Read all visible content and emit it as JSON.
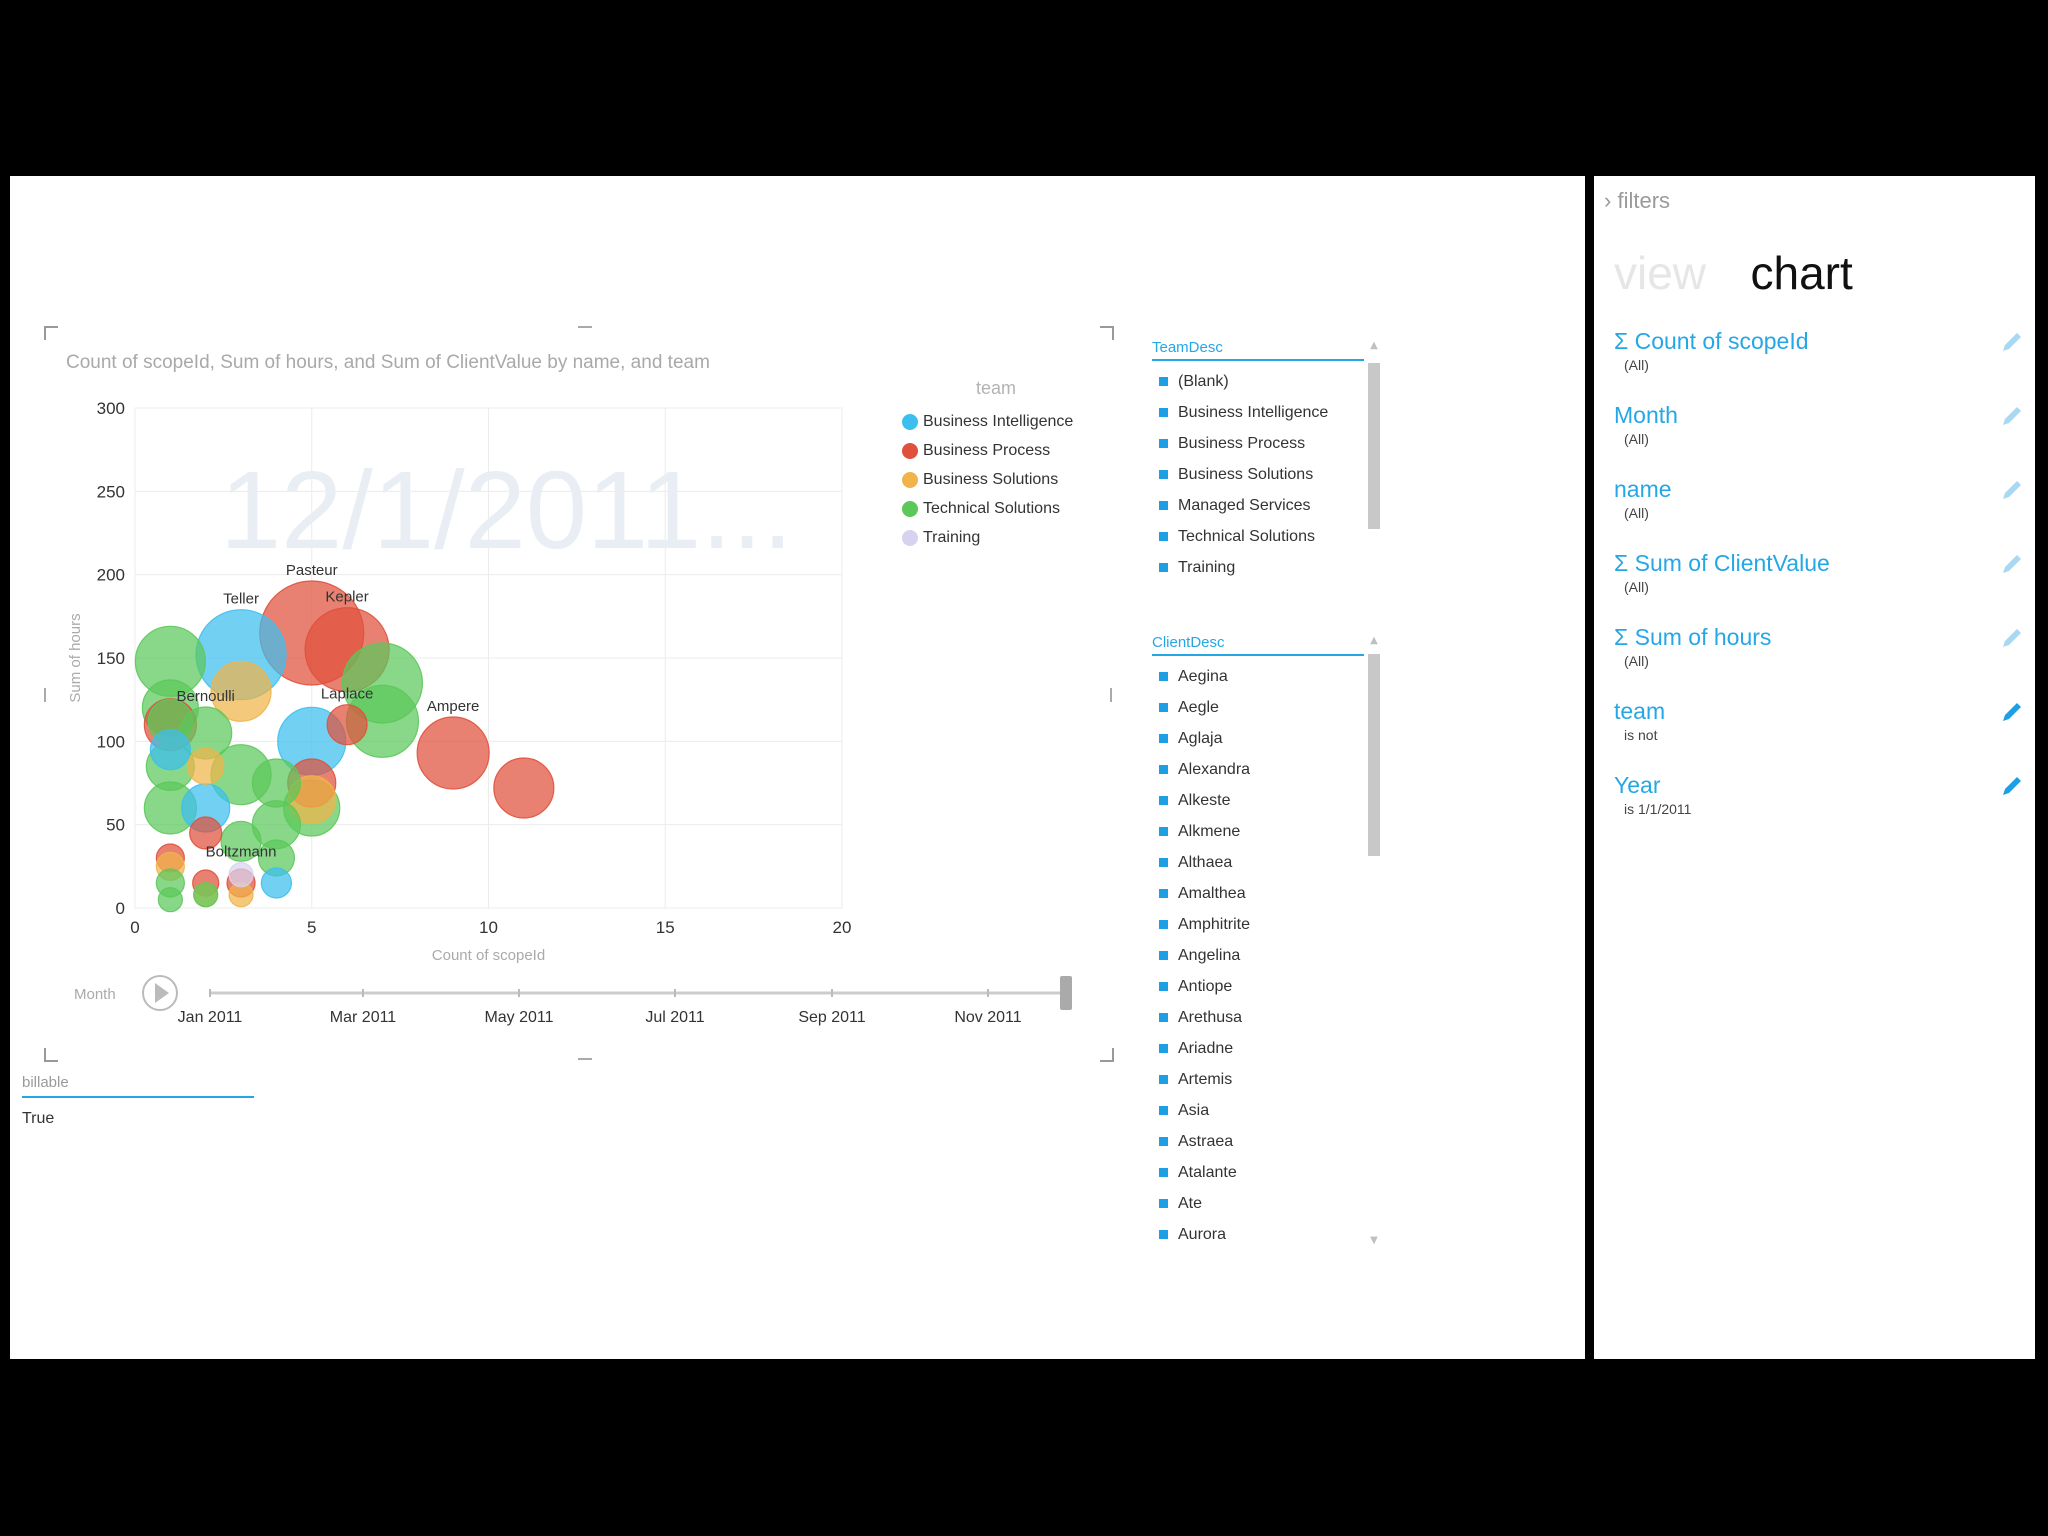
{
  "chart": {
    "title": "Count of scopeId, Sum of hours, and Sum of ClientValue by name, and team",
    "watermark": "12/1/2011...",
    "xlabel": "Count of scopeId",
    "ylabel": "Sum of hours",
    "x_ticks": [
      "0",
      "5",
      "10",
      "15",
      "20"
    ],
    "y_ticks": [
      "0",
      "50",
      "100",
      "150",
      "200",
      "250",
      "300"
    ]
  },
  "legend": {
    "title": "team",
    "items": [
      {
        "label": "Business Intelligence",
        "color": "#3cbfef"
      },
      {
        "label": "Business Process",
        "color": "#e0503c"
      },
      {
        "label": "Business Solutions",
        "color": "#f0b44a"
      },
      {
        "label": "Technical Solutions",
        "color": "#5cc85a"
      },
      {
        "label": "Training",
        "color": "#d8d2f0"
      }
    ]
  },
  "play_axis": {
    "label": "Month",
    "ticks": [
      "Jan 2011",
      "Mar 2011",
      "May 2011",
      "Jul 2011",
      "Sep 2011",
      "Nov 2011"
    ]
  },
  "team_slicer": {
    "header": "TeamDesc",
    "items": [
      "(Blank)",
      "Business Intelligence",
      "Business Process",
      "Business Solutions",
      "Managed Services",
      "Technical Solutions",
      "Training"
    ]
  },
  "client_slicer": {
    "header": "ClientDesc",
    "items": [
      "Aegina",
      "Aegle",
      "Aglaja",
      "Alexandra",
      "Alkeste",
      "Alkmene",
      "Althaea",
      "Amalthea",
      "Amphitrite",
      "Angelina",
      "Antiope",
      "Arethusa",
      "Ariadne",
      "Artemis",
      "Asia",
      "Astraea",
      "Atalante",
      "Ate",
      "Aurora"
    ]
  },
  "billable": {
    "header": "billable",
    "value": "True"
  },
  "right_panel": {
    "filters_label": "filters",
    "filters_chevron": "›",
    "tab_view": "view",
    "tab_chart": "chart",
    "fields": [
      {
        "name": "Σ Count of scopeId",
        "sub": "(All)"
      },
      {
        "name": "Month",
        "sub": "(All)"
      },
      {
        "name": "name",
        "sub": "(All)"
      },
      {
        "name": "Σ Sum of ClientValue",
        "sub": "(All)"
      },
      {
        "name": "Σ Sum of hours",
        "sub": "(All)"
      },
      {
        "name": "team",
        "sub": "is not"
      },
      {
        "name": "Year",
        "sub": "is 1/1/2011"
      }
    ]
  },
  "chart_data": {
    "type": "scatter",
    "title": "Count of scopeId, Sum of hours, and Sum of ClientValue by name, and team",
    "xlabel": "Count of scopeId",
    "ylabel": "Sum of hours",
    "xlim": [
      0,
      20
    ],
    "ylim": [
      0,
      300
    ],
    "grid": true,
    "legend": "top-right",
    "series": [
      {
        "name": "Business Intelligence",
        "color": "#3cbfef",
        "points": [
          {
            "x": 3,
            "y": 152,
            "size": 45,
            "label": "Teller"
          },
          {
            "x": 5,
            "y": 100,
            "size": 34
          },
          {
            "x": 2,
            "y": 60,
            "size": 24
          },
          {
            "x": 4,
            "y": 15,
            "size": 15
          },
          {
            "x": 1,
            "y": 95,
            "size": 20
          }
        ]
      },
      {
        "name": "Business Process",
        "color": "#e0503c",
        "points": [
          {
            "x": 5,
            "y": 165,
            "size": 52,
            "label": "Pasteur"
          },
          {
            "x": 6,
            "y": 155,
            "size": 42,
            "label": "Kepler"
          },
          {
            "x": 9,
            "y": 93,
            "size": 36,
            "label": "Ampere"
          },
          {
            "x": 11,
            "y": 72,
            "size": 30
          },
          {
            "x": 1,
            "y": 110,
            "size": 26
          },
          {
            "x": 6,
            "y": 110,
            "size": 20,
            "label": "Laplace"
          },
          {
            "x": 5,
            "y": 75,
            "size": 24
          },
          {
            "x": 2,
            "y": 45,
            "size": 16
          },
          {
            "x": 1,
            "y": 30,
            "size": 14
          },
          {
            "x": 2,
            "y": 15,
            "size": 13
          },
          {
            "x": 3,
            "y": 15,
            "size": 14
          }
        ]
      },
      {
        "name": "Business Solutions",
        "color": "#f0b44a",
        "points": [
          {
            "x": 3,
            "y": 130,
            "size": 30
          },
          {
            "x": 5,
            "y": 65,
            "size": 24
          },
          {
            "x": 2,
            "y": 85,
            "size": 18
          },
          {
            "x": 1,
            "y": 25,
            "size": 14
          },
          {
            "x": 2,
            "y": 8,
            "size": 12
          },
          {
            "x": 3,
            "y": 8,
            "size": 12
          }
        ]
      },
      {
        "name": "Technical Solutions",
        "color": "#5cc85a",
        "points": [
          {
            "x": 1,
            "y": 148,
            "size": 35
          },
          {
            "x": 7,
            "y": 135,
            "size": 40
          },
          {
            "x": 7,
            "y": 112,
            "size": 36
          },
          {
            "x": 1,
            "y": 120,
            "size": 28
          },
          {
            "x": 1,
            "y": 112,
            "size": 22
          },
          {
            "x": 2,
            "y": 105,
            "size": 26,
            "label": "Bernoulli"
          },
          {
            "x": 3,
            "y": 80,
            "size": 30
          },
          {
            "x": 4,
            "y": 75,
            "size": 24
          },
          {
            "x": 5,
            "y": 60,
            "size": 28
          },
          {
            "x": 1,
            "y": 85,
            "size": 24
          },
          {
            "x": 1,
            "y": 60,
            "size": 26
          },
          {
            "x": 4,
            "y": 50,
            "size": 24
          },
          {
            "x": 3,
            "y": 40,
            "size": 20
          },
          {
            "x": 4,
            "y": 30,
            "size": 18
          },
          {
            "x": 1,
            "y": 15,
            "size": 14
          },
          {
            "x": 1,
            "y": 5,
            "size": 12
          },
          {
            "x": 2,
            "y": 8,
            "size": 12
          }
        ]
      },
      {
        "name": "Training",
        "color": "#d8d2f0",
        "points": [
          {
            "x": 3,
            "y": 20,
            "size": 12,
            "label": "Boltzmann"
          }
        ]
      }
    ]
  },
  "colors": {
    "accent": "#25a7e6",
    "slicer_square": "#1c9fe3",
    "background": "#000000"
  }
}
